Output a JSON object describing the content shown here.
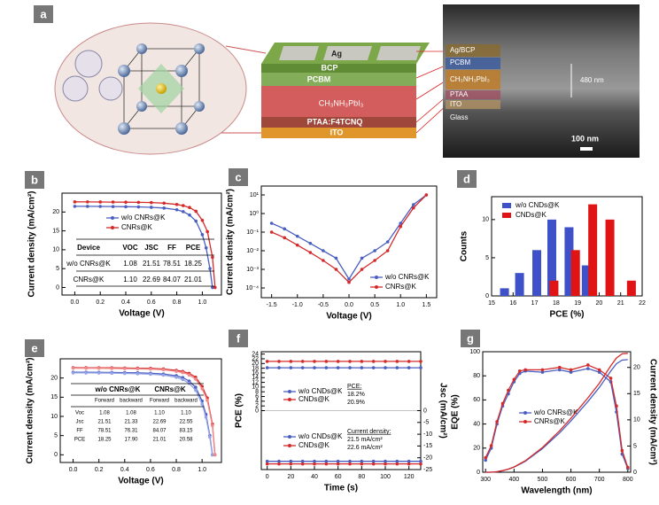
{
  "figure_a": {
    "panel": "a",
    "device_layers": [
      "Ag",
      "BCP",
      "PCBM",
      "CH₃NH₃PbI₃",
      "PTAA:F4TCNQ",
      "ITO"
    ],
    "sem_labels": [
      "Ag/BCP",
      "PCBM",
      "CH₃NH₃PbI₃",
      "PTAA",
      "ITO",
      "Glass"
    ],
    "thickness": "480 nm",
    "scale_bar": "100 nm"
  },
  "chart_data": [
    {
      "panel": "b",
      "type": "line",
      "xlabel": "Voltage (V)",
      "ylabel": "Current density (mA/cm²)",
      "xlim": [
        -0.1,
        1.15
      ],
      "ylim": [
        -2,
        25
      ],
      "xticks": [
        {
          "value": 0,
          "label": "0.0"
        },
        0.2,
        0.4,
        0.6,
        0.8,
        {
          "value": 1,
          "label": "1.0"
        }
      ],
      "yticks": [
        0,
        5,
        10,
        15,
        20
      ],
      "markers": true,
      "series": [
        {
          "name": "w/o CNRs@K",
          "color": "#4a5fc1",
          "x": [
            0,
            0.1,
            0.2,
            0.3,
            0.4,
            0.5,
            0.6,
            0.7,
            0.8,
            0.85,
            0.9,
            0.95,
            1.0,
            1.03,
            1.06,
            1.08
          ],
          "values": [
            21.51,
            21.5,
            21.48,
            21.45,
            21.4,
            21.35,
            21.25,
            21.05,
            20.6,
            20.1,
            19.2,
            17.6,
            14.0,
            10.5,
            5.0,
            0
          ]
        },
        {
          "name": "CNRs@K",
          "color": "#d42a2a",
          "x": [
            0,
            0.1,
            0.2,
            0.3,
            0.4,
            0.5,
            0.6,
            0.7,
            0.8,
            0.85,
            0.9,
            0.95,
            1.0,
            1.04,
            1.08,
            1.1
          ],
          "values": [
            22.69,
            22.68,
            22.66,
            22.64,
            22.6,
            22.56,
            22.5,
            22.35,
            22.0,
            21.7,
            21.2,
            20.2,
            17.8,
            14.8,
            8.0,
            0
          ]
        }
      ],
      "table": {
        "header": [
          "Device",
          "VOC",
          "JSC",
          "FF",
          "PCE"
        ],
        "rows": [
          [
            "w/o CNRs@K",
            "1.08",
            "21.51",
            "78.51",
            "18.25"
          ],
          [
            "CNRs@K",
            "1.10",
            "22.69",
            "84.07",
            "21.01"
          ]
        ]
      }
    },
    {
      "panel": "c",
      "type": "line",
      "xlabel": "Voltage (V)",
      "ylabel": "Current density (mA/cm²)",
      "xlim": [
        -1.7,
        1.7
      ],
      "ylim": [
        3e-05,
        30
      ],
      "log": true,
      "xticks": [
        -1.5,
        {
          "value": -1,
          "label": "-1.0"
        },
        -0.5,
        {
          "value": 0,
          "label": "0.0"
        },
        0.5,
        {
          "value": 1,
          "label": "1.0"
        },
        1.5
      ],
      "yticks": [
        {
          "value": 0.0001,
          "label": "10⁻⁴"
        },
        {
          "value": 0.001,
          "label": "10⁻³"
        },
        {
          "value": 0.01,
          "label": "10⁻²"
        },
        {
          "value": 0.1,
          "label": "10⁻¹"
        },
        {
          "value": 1,
          "label": "10⁰"
        },
        {
          "value": 10,
          "label": "10¹"
        }
      ],
      "markers": true,
      "series": [
        {
          "name": "w/o CNRs@K",
          "color": "#4a5fc1",
          "x": [
            -1.5,
            -1.25,
            -1,
            -0.75,
            -0.5,
            -0.25,
            0,
            0.25,
            0.5,
            0.75,
            1,
            1.25,
            1.5
          ],
          "values": [
            0.3,
            0.15,
            0.06,
            0.025,
            0.01,
            0.004,
            0.0003,
            0.004,
            0.01,
            0.03,
            0.3,
            3,
            10
          ]
        },
        {
          "name": "CNRs@K",
          "color": "#d42a2a",
          "x": [
            -1.5,
            -1.25,
            -1,
            -0.75,
            -0.5,
            -0.25,
            0,
            0.25,
            0.5,
            0.75,
            1,
            1.25,
            1.5
          ],
          "values": [
            0.1,
            0.05,
            0.02,
            0.008,
            0.003,
            0.001,
            0.0002,
            0.001,
            0.003,
            0.01,
            0.2,
            2,
            10
          ]
        }
      ]
    },
    {
      "panel": "d",
      "type": "bar",
      "xlabel": "PCE (%)",
      "ylabel": "Counts",
      "xlim": [
        15,
        22
      ],
      "ylim": [
        0,
        13
      ],
      "xticks": [
        15,
        16,
        17,
        18,
        19,
        20,
        21,
        22
      ],
      "yticks": [
        0,
        5,
        10
      ],
      "series": [
        {
          "name": "w/o CNDs@K",
          "color": "#3f51c8",
          "x": [
            15.6,
            16.3,
            17.1,
            17.8,
            18.6,
            19.4
          ],
          "values": [
            1,
            3,
            6,
            10,
            9,
            4
          ]
        },
        {
          "name": "CNDs@K",
          "color": "#e01414",
          "x": [
            17.9,
            18.9,
            19.7,
            20.5,
            21.5
          ],
          "values": [
            2,
            6,
            12,
            10,
            2
          ]
        }
      ]
    },
    {
      "panel": "e",
      "type": "line",
      "xlabel": "Voltage (V)",
      "ylabel": "Current density (mA/cm²)",
      "xlim": [
        -0.1,
        1.15
      ],
      "ylim": [
        -2,
        25
      ],
      "xticks": [
        {
          "value": 0,
          "label": "0.0"
        },
        0.2,
        0.4,
        0.6,
        0.8,
        {
          "value": 1,
          "label": "1.0"
        }
      ],
      "yticks": [
        0,
        5,
        10,
        15,
        20
      ],
      "markers": true,
      "series": [
        {
          "color": "#4a5fc1",
          "x": [
            0,
            0.1,
            0.2,
            0.3,
            0.4,
            0.5,
            0.6,
            0.7,
            0.8,
            0.85,
            0.9,
            0.95,
            1.0,
            1.03,
            1.06,
            1.08
          ],
          "values": [
            21.51,
            21.5,
            21.48,
            21.45,
            21.4,
            21.35,
            21.25,
            21.05,
            20.6,
            20.1,
            19.2,
            17.6,
            14.0,
            10.5,
            5.0,
            0
          ]
        },
        {
          "color": "#93a3e6",
          "x": [
            0,
            0.1,
            0.2,
            0.3,
            0.4,
            0.5,
            0.6,
            0.7,
            0.8,
            0.85,
            0.9,
            0.95,
            1.0,
            1.03,
            1.06,
            1.08
          ],
          "values": [
            21.33,
            21.32,
            21.3,
            21.26,
            21.2,
            21.12,
            21.0,
            20.75,
            20.2,
            19.6,
            18.6,
            16.8,
            13.2,
            9.8,
            4.6,
            0
          ]
        },
        {
          "color": "#d42a2a",
          "x": [
            0,
            0.1,
            0.2,
            0.3,
            0.4,
            0.5,
            0.6,
            0.7,
            0.8,
            0.85,
            0.9,
            0.95,
            1.0,
            1.04,
            1.08,
            1.1
          ],
          "values": [
            22.69,
            22.68,
            22.66,
            22.64,
            22.6,
            22.56,
            22.5,
            22.35,
            22.0,
            21.7,
            21.2,
            20.2,
            17.8,
            14.8,
            8.0,
            0
          ]
        },
        {
          "color": "#f08a8a",
          "x": [
            0,
            0.1,
            0.2,
            0.3,
            0.4,
            0.5,
            0.6,
            0.7,
            0.8,
            0.85,
            0.9,
            0.95,
            1.0,
            1.04,
            1.08,
            1.1
          ],
          "values": [
            22.55,
            22.54,
            22.52,
            22.49,
            22.45,
            22.4,
            22.32,
            22.15,
            21.75,
            21.4,
            20.8,
            19.7,
            17.2,
            14.2,
            7.6,
            0
          ]
        }
      ],
      "table": {
        "header": [
          "w/o CNRs@K",
          "CNRs@K"
        ],
        "subheader": [
          "Forward",
          "backward",
          "Forward",
          "backward"
        ],
        "rows": [
          [
            "Voc",
            "1.08",
            "1.08",
            "1.10",
            "1.10"
          ],
          [
            "Jsc",
            "21.51",
            "21.33",
            "22.69",
            "22.55"
          ],
          [
            "FF",
            "78.51",
            "76.31",
            "84.07",
            "83.15"
          ],
          [
            "PCE",
            "18.25",
            "17.90",
            "21.01",
            "20.58"
          ]
        ]
      }
    },
    {
      "panel": "f",
      "type": "line",
      "xlabel": "Time (s)",
      "ylabel": "PCE (%)",
      "y2label": "Jsc (mA/cm²)",
      "xlim": [
        -5,
        130
      ],
      "ylim": [
        -25,
        25
      ],
      "y2lim": [
        -25,
        25
      ],
      "xticks": [
        0,
        20,
        40,
        60,
        80,
        100,
        120
      ],
      "yticks": [
        0,
        2,
        4,
        6,
        8,
        10,
        12,
        14,
        16,
        18,
        20,
        22,
        24
      ],
      "y2ticks": [
        0,
        -5,
        -10,
        -15,
        -20,
        -25
      ],
      "markers": true,
      "series": [
        {
          "name": "w/o CNDs@K",
          "color": "#4a5fc1",
          "x": [
            0,
            10,
            20,
            30,
            40,
            50,
            60,
            70,
            80,
            90,
            100,
            110,
            120,
            130
          ],
          "values": [
            18.2,
            18.2,
            18.2,
            18.2,
            18.2,
            18.2,
            18.2,
            18.2,
            18.2,
            18.2,
            18.2,
            18.2,
            18.2,
            18.2
          ]
        },
        {
          "name": "CNDs@K",
          "color": "#d42a2a",
          "x": [
            0,
            10,
            20,
            30,
            40,
            50,
            60,
            70,
            80,
            90,
            100,
            110,
            120,
            130
          ],
          "values": [
            20.9,
            20.9,
            20.9,
            20.9,
            20.9,
            20.9,
            20.9,
            20.9,
            20.9,
            20.9,
            20.9,
            20.9,
            20.9,
            20.9
          ]
        },
        {
          "name": "w/o CNDs@K",
          "color": "#4a5fc1",
          "axis": "y2",
          "x": [
            0,
            10,
            20,
            30,
            40,
            50,
            60,
            70,
            80,
            90,
            100,
            110,
            120,
            130
          ],
          "values": [
            -21.5,
            -21.5,
            -21.5,
            -21.5,
            -21.5,
            -21.5,
            -21.5,
            -21.5,
            -21.5,
            -21.5,
            -21.5,
            -21.5,
            -21.5,
            -21.5
          ]
        },
        {
          "name": "CNDs@K",
          "color": "#d42a2a",
          "axis": "y2",
          "x": [
            0,
            10,
            20,
            30,
            40,
            50,
            60,
            70,
            80,
            90,
            100,
            110,
            120,
            130
          ],
          "values": [
            -22.6,
            -22.6,
            -22.6,
            -22.6,
            -22.6,
            -22.6,
            -22.6,
            -22.6,
            -22.6,
            -22.6,
            -22.6,
            -22.6,
            -22.6,
            -22.6
          ]
        }
      ],
      "annotations": [
        "PCE:",
        "18.2%",
        "20.9%",
        "Current density:",
        "21.5 mA/cm²",
        "22.6 mA/cm²"
      ]
    },
    {
      "panel": "g",
      "type": "line",
      "xlabel": "Wavelength (nm)",
      "ylabel": "EQE (%)",
      "y2label": "Current density (mA/cm²)",
      "xlim": [
        290,
        810
      ],
      "ylim": [
        0,
        100
      ],
      "y2lim": [
        0,
        23
      ],
      "xticks": [
        300,
        400,
        500,
        600,
        700,
        800
      ],
      "yticks": [
        0,
        20,
        40,
        60,
        80,
        100
      ],
      "y2ticks": [
        0,
        5,
        10,
        15,
        20
      ],
      "series": [
        {
          "name": "w/o CNRs@K",
          "color": "#4a5fc1",
          "markers": true,
          "x": [
            300,
            320,
            340,
            360,
            380,
            400,
            420,
            440,
            500,
            560,
            600,
            660,
            700,
            740,
            760,
            780,
            800
          ],
          "values": [
            10,
            20,
            40,
            55,
            65,
            75,
            82,
            84,
            83,
            85,
            83,
            86,
            83,
            75,
            50,
            15,
            3
          ]
        },
        {
          "name": "CNRs@K",
          "color": "#d42a2a",
          "markers": true,
          "x": [
            300,
            320,
            340,
            360,
            380,
            400,
            420,
            440,
            500,
            560,
            600,
            660,
            700,
            740,
            760,
            780,
            800
          ],
          "values": [
            12,
            22,
            42,
            57,
            68,
            77,
            84,
            85,
            85,
            87,
            85,
            89,
            85,
            78,
            55,
            18,
            4
          ]
        },
        {
          "color": "#4a5fc1",
          "axis": "y2",
          "x": [
            300,
            320,
            340,
            360,
            380,
            400,
            420,
            440,
            500,
            560,
            600,
            660,
            700,
            740,
            760,
            780,
            800
          ],
          "values": [
            0,
            0,
            0.1,
            0.3,
            0.6,
            1.0,
            1.5,
            2.1,
            4.5,
            7.5,
            9.8,
            13.5,
            16.2,
            19.3,
            20.7,
            21.4,
            21.5
          ]
        },
        {
          "color": "#d42a2a",
          "axis": "y2",
          "x": [
            300,
            320,
            340,
            360,
            380,
            400,
            420,
            440,
            500,
            560,
            600,
            660,
            700,
            740,
            760,
            780,
            800
          ],
          "values": [
            0,
            0,
            0.1,
            0.3,
            0.6,
            1.0,
            1.6,
            2.2,
            4.7,
            7.9,
            10.3,
            14.2,
            17.0,
            20.3,
            21.8,
            22.6,
            22.7
          ]
        }
      ]
    }
  ]
}
